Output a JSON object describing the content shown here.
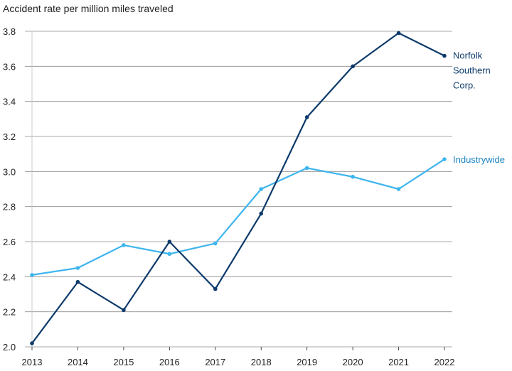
{
  "chart_data": {
    "type": "line",
    "title": "",
    "ylabel": "Accident rate per million miles traveled",
    "xlabel": "",
    "x": [
      "2013",
      "2014",
      "2015",
      "2016",
      "2017",
      "2018",
      "2019",
      "2020",
      "2021",
      "2022"
    ],
    "yticks": [
      "2.0",
      "2.2",
      "2.4",
      "2.6",
      "2.8",
      "3.0",
      "3.2",
      "3.4",
      "3.6",
      "3.8"
    ],
    "ylim": [
      2.0,
      3.8
    ],
    "grid": true,
    "series": [
      {
        "name": "Norfolk Southern Corp.",
        "label_lines": [
          "Norfolk",
          "Southern",
          "Corp."
        ],
        "color": "#0d3a6b",
        "label_color": "#0d3a6b",
        "values": [
          2.02,
          2.37,
          2.21,
          2.6,
          2.33,
          2.76,
          3.31,
          3.6,
          3.79,
          3.66
        ]
      },
      {
        "name": "Industrywide",
        "label_lines": [
          "Industrywide"
        ],
        "color": "#3db5ee",
        "label_color": "#1e86c6",
        "values": [
          2.41,
          2.45,
          2.58,
          2.53,
          2.59,
          2.9,
          3.02,
          2.97,
          2.9,
          3.07
        ]
      }
    ]
  }
}
